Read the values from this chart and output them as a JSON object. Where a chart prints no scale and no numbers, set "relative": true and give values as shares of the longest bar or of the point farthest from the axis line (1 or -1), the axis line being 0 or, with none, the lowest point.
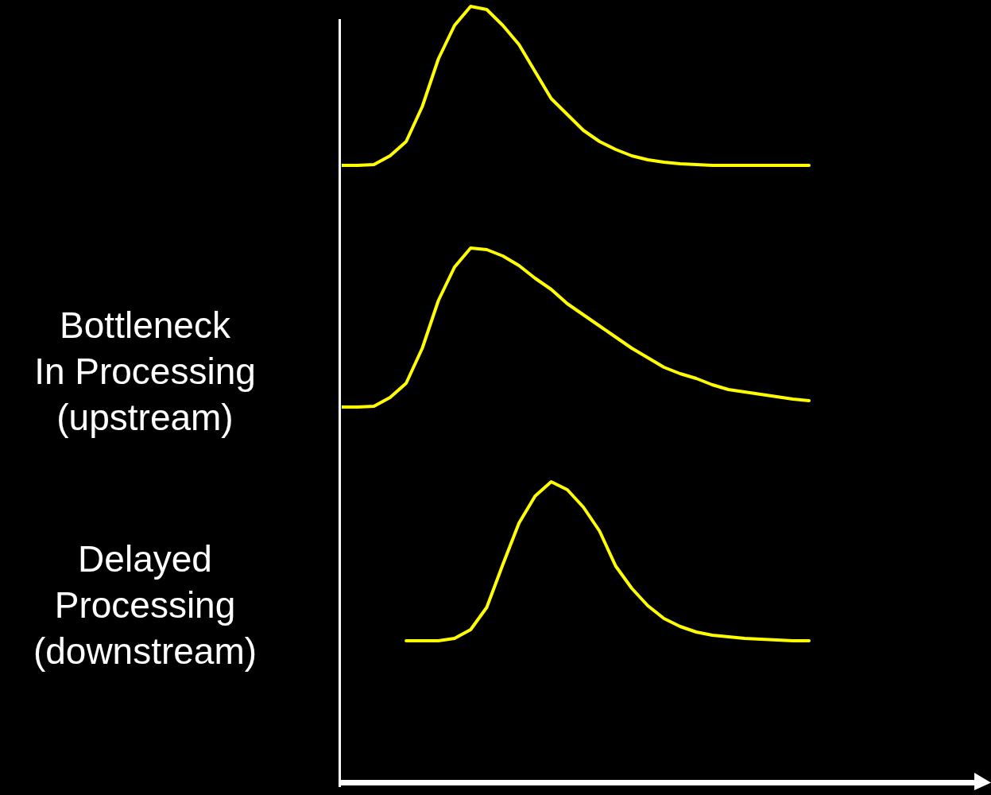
{
  "chart_data": [
    {
      "type": "line",
      "relative": true,
      "tick_labels": false,
      "categories": [
        null,
        null,
        null,
        null,
        null,
        null,
        null,
        null,
        null,
        null,
        null,
        null,
        null,
        null,
        null,
        null,
        null,
        null,
        null,
        null,
        null,
        null,
        null,
        null,
        null,
        null,
        null,
        null,
        null,
        null
      ],
      "series": [
        {
          "color": "#ffff00",
          "values": [
            0,
            0,
            0.005,
            0.06,
            0.15,
            0.37,
            0.67,
            0.88,
            1,
            0.98,
            0.88,
            0.76,
            0.59,
            0.42,
            0.32,
            0.22,
            0.15,
            0.1,
            0.06,
            0.035,
            0.02,
            0.01,
            0.005,
            0,
            0,
            0,
            0,
            0,
            0,
            0
          ]
        }
      ]
    },
    {
      "type": "line",
      "relative": true,
      "tick_labels": false,
      "ylabel": "Bottleneck\nIn Processing\n(upstream)",
      "categories": [
        null,
        null,
        null,
        null,
        null,
        null,
        null,
        null,
        null,
        null,
        null,
        null,
        null,
        null,
        null,
        null,
        null,
        null,
        null,
        null,
        null,
        null,
        null,
        null,
        null,
        null,
        null,
        null,
        null,
        null
      ],
      "series": [
        {
          "color": "#ffff00",
          "values": [
            0,
            0,
            0.005,
            0.06,
            0.15,
            0.37,
            0.67,
            0.88,
            1,
            0.99,
            0.95,
            0.89,
            0.81,
            0.74,
            0.65,
            0.58,
            0.51,
            0.44,
            0.37,
            0.31,
            0.25,
            0.21,
            0.18,
            0.14,
            0.11,
            0.095,
            0.08,
            0.065,
            0.05,
            0.04
          ]
        }
      ]
    },
    {
      "type": "line",
      "relative": true,
      "tick_labels": false,
      "ylabel": "Delayed\nProcessing\n(downstream)",
      "categories": [
        null,
        null,
        null,
        null,
        null,
        null,
        null,
        null,
        null,
        null,
        null,
        null,
        null,
        null,
        null,
        null,
        null,
        null,
        null,
        null,
        null,
        null,
        null,
        null,
        null,
        null,
        null,
        null,
        null,
        null
      ],
      "series": [
        {
          "color": "#ffff00",
          "values": [
            null,
            null,
            null,
            null,
            0,
            0,
            0,
            0.015,
            0.07,
            0.21,
            0.48,
            0.74,
            0.91,
            1,
            0.95,
            0.84,
            0.69,
            0.47,
            0.33,
            0.22,
            0.14,
            0.09,
            0.055,
            0.035,
            0.025,
            0.015,
            0.01,
            0.005,
            0,
            0
          ]
        }
      ]
    }
  ]
}
